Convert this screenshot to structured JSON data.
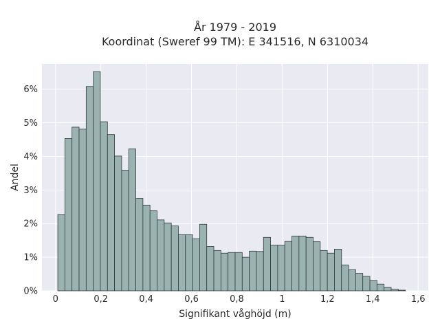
{
  "chart_data": {
    "type": "bar",
    "title_lines": [
      "År 1979 - 2019",
      "Koordinat (Sweref 99 TM): E 341516, N 6310034"
    ],
    "xlabel": "Signifikant våghöjd (m)",
    "ylabel": "Andel",
    "xlim": [
      -0.06,
      1.645
    ],
    "ylim": [
      0,
      6.75
    ],
    "x_ticks": [
      0,
      0.2,
      0.4,
      0.6,
      0.8,
      1,
      1.2,
      1.4,
      1.6
    ],
    "x_tick_labels": [
      "0",
      "0,2",
      "0,4",
      "0,6",
      "0,8",
      "1",
      "1,2",
      "1,4",
      "1,6"
    ],
    "y_ticks": [
      0,
      1,
      2,
      3,
      4,
      5,
      6
    ],
    "y_tick_labels": [
      "0%",
      "1%",
      "2%",
      "3%",
      "4%",
      "5%",
      "6%"
    ],
    "bin_width": 0.0313,
    "bin_start": 0.01,
    "values": [
      2.27,
      4.53,
      4.87,
      4.81,
      6.08,
      6.52,
      5.03,
      4.65,
      4.01,
      3.59,
      4.22,
      2.75,
      2.55,
      2.38,
      2.11,
      2.02,
      1.93,
      1.67,
      1.67,
      1.55,
      1.98,
      1.32,
      1.2,
      1.12,
      1.14,
      1.14,
      1.0,
      1.18,
      1.17,
      1.59,
      1.36,
      1.36,
      1.47,
      1.63,
      1.63,
      1.59,
      1.46,
      1.2,
      1.12,
      1.24,
      0.77,
      0.63,
      0.52,
      0.43,
      0.31,
      0.2,
      0.1,
      0.05,
      0.02
    ],
    "grid": true,
    "bar_color": "#9ab3b1",
    "bar_edge_color": "#2f3a3a",
    "plot_background": "#eaeaf2"
  }
}
